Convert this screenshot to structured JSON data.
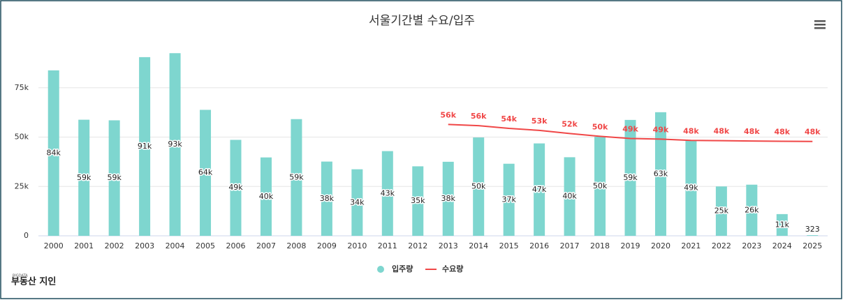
{
  "chart_data": {
    "type": "bar",
    "title": "서울기간별 수요/입주",
    "categories": [
      "2000",
      "2001",
      "2002",
      "2003",
      "2004",
      "2005",
      "2006",
      "2007",
      "2008",
      "2009",
      "2010",
      "2011",
      "2012",
      "2013",
      "2014",
      "2015",
      "2016",
      "2017",
      "2018",
      "2019",
      "2020",
      "2021",
      "2022",
      "2023",
      "2024",
      "2025"
    ],
    "series": [
      {
        "name": "입주량",
        "type": "bar",
        "color": "#7ed6cf",
        "values": [
          83800,
          58800,
          58500,
          90500,
          92500,
          63800,
          48600,
          39700,
          59100,
          37600,
          33700,
          42900,
          35200,
          37500,
          49800,
          36500,
          46800,
          39800,
          50200,
          58700,
          62600,
          48500,
          25000,
          25900,
          11000,
          323
        ],
        "value_labels": [
          "84k",
          "59k",
          "59k",
          "91k",
          "93k",
          "64k",
          "49k",
          "40k",
          "59k",
          "38k",
          "34k",
          "43k",
          "35k",
          "38k",
          "50k",
          "37k",
          "47k",
          "40k",
          "50k",
          "59k",
          "63k",
          "49k",
          "25k",
          "26k",
          "11k",
          "323"
        ]
      },
      {
        "name": "수요량",
        "type": "line",
        "color": "#f04747",
        "values": [
          null,
          null,
          null,
          null,
          null,
          null,
          null,
          null,
          null,
          null,
          null,
          null,
          null,
          56400,
          55800,
          54400,
          53400,
          51800,
          50400,
          49300,
          49000,
          48300,
          48200,
          48000,
          47900,
          47800
        ],
        "value_labels": [
          null,
          null,
          null,
          null,
          null,
          null,
          null,
          null,
          null,
          null,
          null,
          null,
          null,
          "56k",
          "56k",
          "54k",
          "53k",
          "52k",
          "50k",
          "49k",
          "49k",
          "48k",
          "48k",
          "48k",
          "48k",
          "48k"
        ]
      }
    ],
    "ylim": [
      0,
      100000
    ],
    "yticks": [
      0,
      {
        "value": 25000,
        "label": "25k"
      },
      {
        "value": 50000,
        "label": "50k"
      },
      {
        "value": 75000,
        "label": "75k"
      }
    ],
    "grid": true,
    "legend": "bottom"
  },
  "logo": {
    "tag": "BIGDATA",
    "text": "부동산 지인"
  }
}
